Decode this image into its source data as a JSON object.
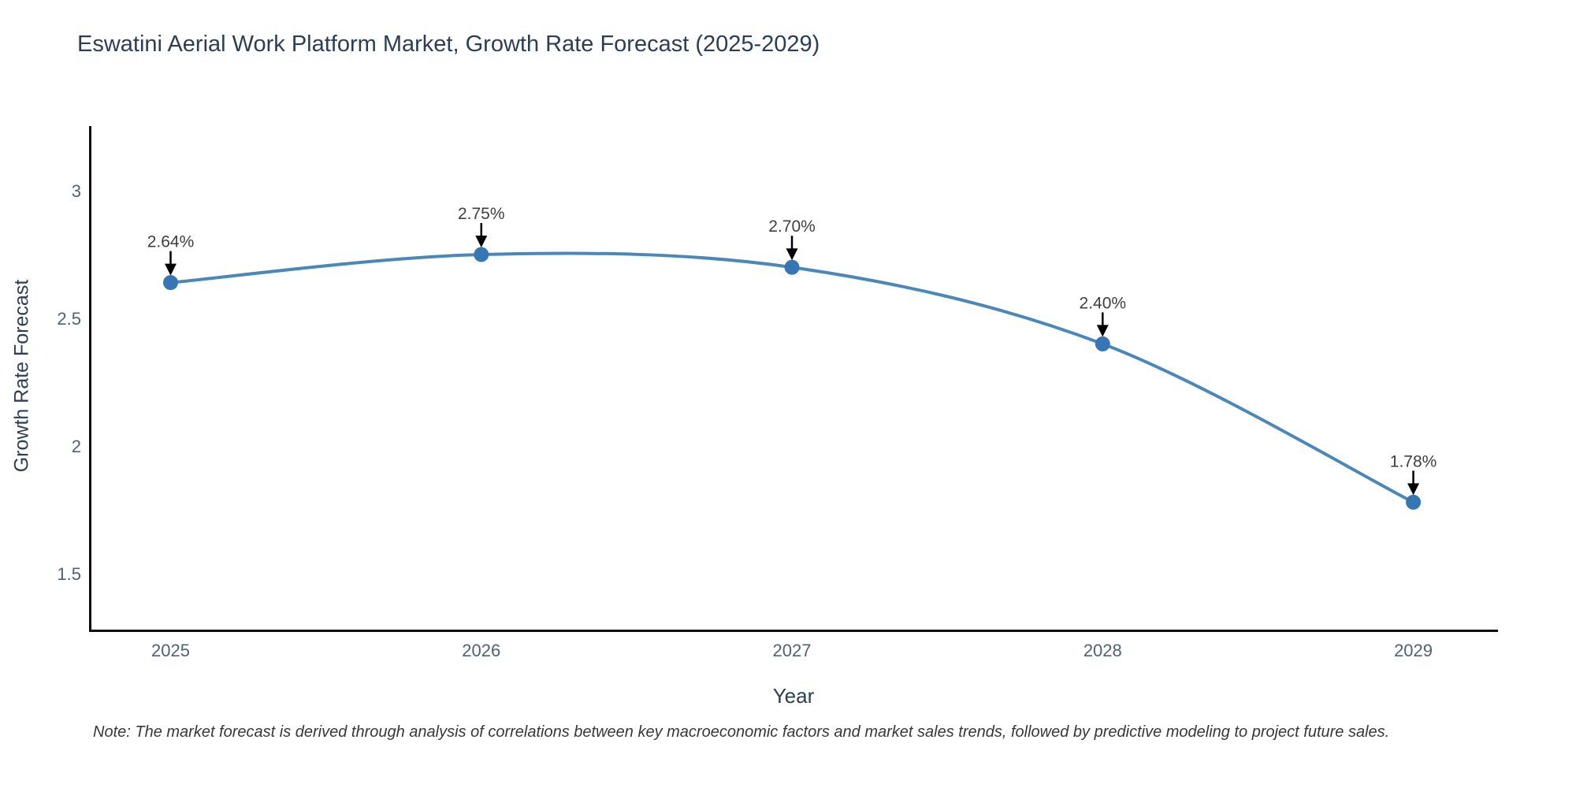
{
  "page": {
    "note": "Note: The market forecast is derived through analysis of correlations between key macroeconomic factors and market sales trends, followed by predictive modeling to project future sales."
  },
  "chart_data": {
    "type": "line",
    "title": "Eswatini Aerial Work Platform Market, Growth Rate Forecast (2025-2029)",
    "xlabel": "Year",
    "ylabel": "Growth Rate Forecast",
    "x": [
      2025,
      2026,
      2027,
      2028,
      2029
    ],
    "x_tick_labels": [
      "2025",
      "2026",
      "2027",
      "2028",
      "2029"
    ],
    "series": [
      {
        "name": "Growth Rate Forecast",
        "values": [
          2.64,
          2.75,
          2.7,
          2.4,
          1.78
        ]
      }
    ],
    "point_labels": [
      "2.64%",
      "2.75%",
      "2.70%",
      "2.40%",
      "1.78%"
    ],
    "y_ticks": [
      {
        "value": 3,
        "label": "3"
      },
      {
        "value": 2.5,
        "label": "2.5"
      },
      {
        "value": 2,
        "label": "2"
      },
      {
        "value": 1.5,
        "label": "1.5"
      }
    ],
    "xlim": [
      2024.74,
      2029.27
    ],
    "ylim": [
      1.278,
      3.253
    ],
    "grid": false,
    "legend_position": "none",
    "line_color": "#4b87b7",
    "marker_color": "#3776b4",
    "annotation_arrow_color": "#000000",
    "axis_line_color": "#0d0d0d",
    "text_colors": {
      "tick": "#506173",
      "annotation": "#3f3f3f"
    }
  }
}
